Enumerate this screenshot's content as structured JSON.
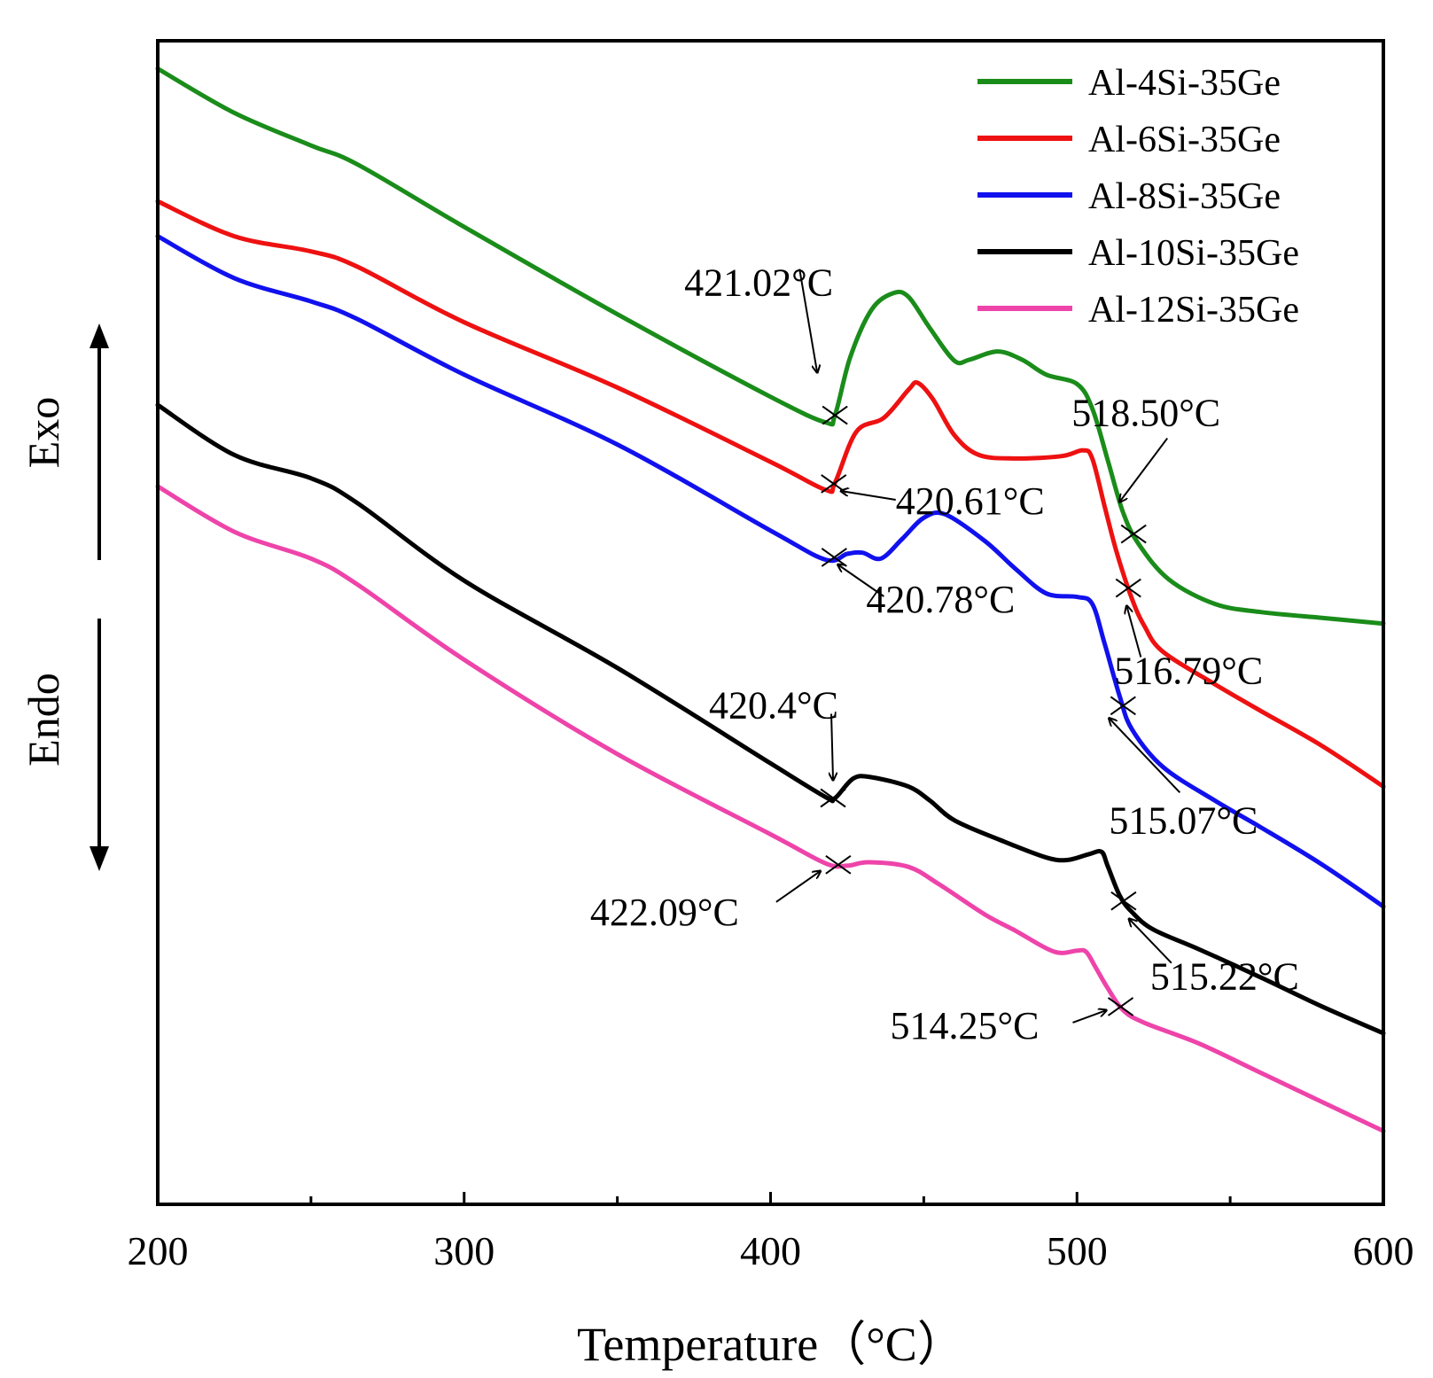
{
  "chart_data": {
    "type": "line",
    "xlabel": "Temperature（°C）",
    "ylabel_top": "Exo",
    "ylabel_bottom": "Endo",
    "xlim": [
      200,
      600
    ],
    "ylim": [
      0,
      100
    ],
    "x_ticks": [
      200,
      300,
      400,
      500,
      600
    ],
    "legend_position": "top-right",
    "series": [
      {
        "name": "Al-4Si-35Ge",
        "color": "#1a8c1a",
        "points": [
          [
            200,
            97.6
          ],
          [
            225,
            93.8
          ],
          [
            250,
            91.0
          ],
          [
            265,
            89.4
          ],
          [
            300,
            84.0
          ],
          [
            350,
            76.5
          ],
          [
            400,
            69.4
          ],
          [
            418,
            67.2
          ],
          [
            421,
            67.8
          ],
          [
            426,
            72.8
          ],
          [
            433,
            76.9
          ],
          [
            440,
            78.3
          ],
          [
            445,
            78.0
          ],
          [
            452,
            75.3
          ],
          [
            460,
            72.5
          ],
          [
            465,
            72.6
          ],
          [
            474,
            73.3
          ],
          [
            482,
            72.6
          ],
          [
            490,
            71.3
          ],
          [
            500,
            70.5
          ],
          [
            505,
            68.4
          ],
          [
            510,
            64.0
          ],
          [
            515,
            59.5
          ],
          [
            520,
            56.8
          ],
          [
            530,
            53.7
          ],
          [
            545,
            51.6
          ],
          [
            560,
            50.9
          ],
          [
            580,
            50.4
          ],
          [
            600,
            49.9
          ]
        ]
      },
      {
        "name": "Al-6Si-35Ge",
        "color": "#ee1111",
        "points": [
          [
            200,
            86.2
          ],
          [
            225,
            83.2
          ],
          [
            250,
            81.9
          ],
          [
            265,
            80.6
          ],
          [
            300,
            75.8
          ],
          [
            350,
            70.2
          ],
          [
            400,
            63.8
          ],
          [
            418,
            61.4
          ],
          [
            421,
            62.0
          ],
          [
            428,
            66.4
          ],
          [
            437,
            67.6
          ],
          [
            445,
            70.0
          ],
          [
            448,
            70.6
          ],
          [
            453,
            69.2
          ],
          [
            460,
            66.1
          ],
          [
            468,
            64.4
          ],
          [
            480,
            64.1
          ],
          [
            495,
            64.3
          ],
          [
            502,
            64.8
          ],
          [
            505,
            64.1
          ],
          [
            509,
            60.0
          ],
          [
            513,
            56.0
          ],
          [
            518,
            52.0
          ],
          [
            522,
            49.7
          ],
          [
            528,
            47.5
          ],
          [
            545,
            44.7
          ],
          [
            560,
            42.4
          ],
          [
            580,
            39.4
          ],
          [
            600,
            35.9
          ]
        ]
      },
      {
        "name": "Al-8Si-35Ge",
        "color": "#1111ee",
        "points": [
          [
            200,
            83.2
          ],
          [
            225,
            79.6
          ],
          [
            250,
            77.6
          ],
          [
            265,
            76.1
          ],
          [
            300,
            71.3
          ],
          [
            350,
            65.3
          ],
          [
            400,
            57.9
          ],
          [
            418,
            55.4
          ],
          [
            425,
            55.9
          ],
          [
            430,
            56.0
          ],
          [
            436,
            55.5
          ],
          [
            443,
            57.2
          ],
          [
            450,
            59.0
          ],
          [
            457,
            59.3
          ],
          [
            470,
            57.0
          ],
          [
            480,
            54.6
          ],
          [
            490,
            52.5
          ],
          [
            500,
            52.2
          ],
          [
            505,
            51.6
          ],
          [
            509,
            48.2
          ],
          [
            514,
            43.6
          ],
          [
            518,
            40.8
          ],
          [
            528,
            37.6
          ],
          [
            545,
            34.7
          ],
          [
            560,
            32.4
          ],
          [
            580,
            29.2
          ],
          [
            600,
            25.6
          ]
        ]
      },
      {
        "name": "Al-10Si-35Ge",
        "color": "#000000",
        "points": [
          [
            200,
            68.7
          ],
          [
            225,
            64.4
          ],
          [
            250,
            62.4
          ],
          [
            265,
            60.3
          ],
          [
            300,
            53.6
          ],
          [
            350,
            46.1
          ],
          [
            400,
            37.9
          ],
          [
            418,
            35.0
          ],
          [
            421,
            34.9
          ],
          [
            427,
            36.6
          ],
          [
            433,
            36.7
          ],
          [
            445,
            35.9
          ],
          [
            452,
            34.7
          ],
          [
            460,
            33.0
          ],
          [
            475,
            31.3
          ],
          [
            490,
            29.8
          ],
          [
            497,
            29.6
          ],
          [
            504,
            30.1
          ],
          [
            508,
            30.3
          ],
          [
            510,
            29.1
          ],
          [
            514,
            26.5
          ],
          [
            518,
            25.1
          ],
          [
            525,
            23.6
          ],
          [
            540,
            21.9
          ],
          [
            560,
            19.5
          ],
          [
            580,
            17.0
          ],
          [
            600,
            14.7
          ]
        ]
      },
      {
        "name": "Al-12Si-35Ge",
        "color": "#ee44aa",
        "points": [
          [
            200,
            61.7
          ],
          [
            225,
            57.8
          ],
          [
            250,
            55.5
          ],
          [
            265,
            53.3
          ],
          [
            300,
            46.8
          ],
          [
            350,
            38.7
          ],
          [
            400,
            31.8
          ],
          [
            418,
            29.3
          ],
          [
            425,
            29.1
          ],
          [
            432,
            29.4
          ],
          [
            445,
            29.0
          ],
          [
            455,
            27.5
          ],
          [
            470,
            24.9
          ],
          [
            480,
            23.5
          ],
          [
            490,
            22.0
          ],
          [
            495,
            21.6
          ],
          [
            500,
            21.8
          ],
          [
            503,
            21.7
          ],
          [
            506,
            20.4
          ],
          [
            510,
            18.6
          ],
          [
            515,
            16.7
          ],
          [
            522,
            15.6
          ],
          [
            540,
            13.8
          ],
          [
            560,
            11.3
          ],
          [
            580,
            8.8
          ],
          [
            600,
            6.3
          ]
        ]
      }
    ],
    "annotations": [
      {
        "label": "421.02°C",
        "series": "Al-4Si-35Ge",
        "x": 421.02
      },
      {
        "label": "420.61°C",
        "series": "Al-6Si-35Ge",
        "x": 420.61
      },
      {
        "label": "420.78°C",
        "series": "Al-8Si-35Ge",
        "x": 420.78
      },
      {
        "label": "420.4°C",
        "series": "Al-10Si-35Ge",
        "x": 420.4
      },
      {
        "label": "422.09°C",
        "series": "Al-12Si-35Ge",
        "x": 422.09
      },
      {
        "label": "518.50°C",
        "series": "Al-4Si-35Ge",
        "x": 518.5
      },
      {
        "label": "516.79°C",
        "series": "Al-6Si-35Ge",
        "x": 516.79
      },
      {
        "label": "515.07°C",
        "series": "Al-8Si-35Ge",
        "x": 515.07
      },
      {
        "label": "515.22°C",
        "series": "Al-10Si-35Ge",
        "x": 515.22
      },
      {
        "label": "514.25°C",
        "series": "Al-12Si-35Ge",
        "x": 514.25
      }
    ]
  }
}
